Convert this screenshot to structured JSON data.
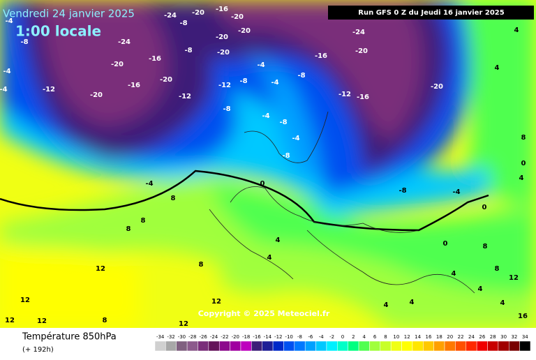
{
  "header": {
    "valid_time": "Vendredi 24 janvier 2025",
    "local_time": "1:00 locale",
    "run": "Run GFS 0 Z du Jeudi 16 janvier 2025",
    "copyright": "Copyright © 2025 Meteociel.fr"
  },
  "footer": {
    "title": "Température 850hPa",
    "lead": "(+ 192h)"
  },
  "legend": {
    "values": [
      -34,
      -32,
      -30,
      -28,
      -26,
      -24,
      -22,
      -20,
      -18,
      -16,
      -14,
      -12,
      -10,
      -8,
      -6,
      -4,
      -2,
      0,
      2,
      4,
      6,
      8,
      10,
      12,
      14,
      16,
      18,
      20,
      22,
      24,
      26,
      28,
      30,
      32,
      34
    ],
    "colors": [
      "#d0d0d0",
      "#a8a8a8",
      "#806080",
      "#8c5a8c",
      "#7a2e7a",
      "#64145a",
      "#8c0a8c",
      "#a000a0",
      "#be00be",
      "#3c1e78",
      "#1e1e96",
      "#0028c8",
      "#0050f0",
      "#0078ff",
      "#00a0ff",
      "#00c8ff",
      "#00f0ff",
      "#00ffc8",
      "#00ff80",
      "#50ff50",
      "#a0ff3c",
      "#c8ff28",
      "#f0ff14",
      "#ffff00",
      "#ffe600",
      "#ffc800",
      "#ffa000",
      "#ff7800",
      "#ff5000",
      "#ff2800",
      "#f00000",
      "#c80000",
      "#a00000",
      "#780000",
      "#000000"
    ]
  },
  "map_labels": [
    -12,
    -20,
    -24,
    -16,
    -16,
    -20,
    -20,
    -12,
    -8,
    -20,
    -20,
    -20,
    -16,
    -20,
    -24,
    -20,
    -12,
    -16,
    -8,
    -4,
    -4,
    -8,
    -12,
    -8,
    -4,
    -8,
    -4,
    -8,
    0,
    -4,
    -8,
    -4,
    0,
    8,
    8,
    8,
    8,
    4,
    4,
    12,
    12,
    12,
    12,
    12,
    12,
    8,
    4,
    4,
    0,
    4,
    8,
    8,
    12,
    4,
    16,
    4,
    4,
    8,
    0,
    4,
    -24,
    -20,
    -16,
    -20,
    -8,
    -4,
    -4,
    -4,
    -8,
    4
  ]
}
